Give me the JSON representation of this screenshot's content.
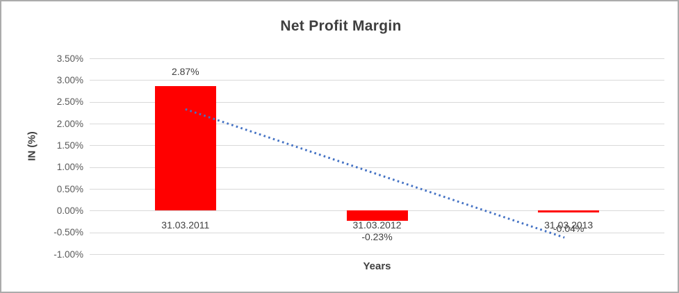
{
  "window": {
    "background": "#ffffff",
    "border_color": "#ababab"
  },
  "chart_data": {
    "type": "bar",
    "title": "Net Profit Margin",
    "xlabel": "Years",
    "ylabel": "IN (%)",
    "categories": [
      "31.03.2011",
      "31.03.2012",
      "31.03.2013"
    ],
    "series": [
      {
        "name": "Net Profit Margin",
        "values": [
          2.87,
          -0.23,
          -0.04
        ]
      }
    ],
    "data_labels": [
      "2.87%",
      "-0.23%",
      "-0.04%"
    ],
    "y_ticks": [
      {
        "label": "3.50%",
        "value": 3.5
      },
      {
        "label": "3.00%",
        "value": 3.0
      },
      {
        "label": "2.50%",
        "value": 2.5
      },
      {
        "label": "2.00%",
        "value": 2.0
      },
      {
        "label": "1.50%",
        "value": 1.5
      },
      {
        "label": "1.00%",
        "value": 1.0
      },
      {
        "label": "0.50%",
        "value": 0.5
      },
      {
        "label": "0.00%",
        "value": 0.0
      },
      {
        "label": "-0.50%",
        "value": -0.5
      },
      {
        "label": "-1.00%",
        "value": -1.0
      }
    ],
    "ylim": [
      -1.0,
      3.5
    ],
    "grid": true,
    "legend": "none",
    "bar_color": "#FF0000",
    "gridline_color": "#D9D9D9",
    "text_color": "#404040",
    "tick_color": "#595959",
    "trendline": {
      "type": "linear",
      "style": "dotted",
      "color": "#4472C4",
      "start": {
        "category_index": 0,
        "value": 2.33
      },
      "end": {
        "category_index": 2,
        "value": -0.62
      }
    }
  }
}
